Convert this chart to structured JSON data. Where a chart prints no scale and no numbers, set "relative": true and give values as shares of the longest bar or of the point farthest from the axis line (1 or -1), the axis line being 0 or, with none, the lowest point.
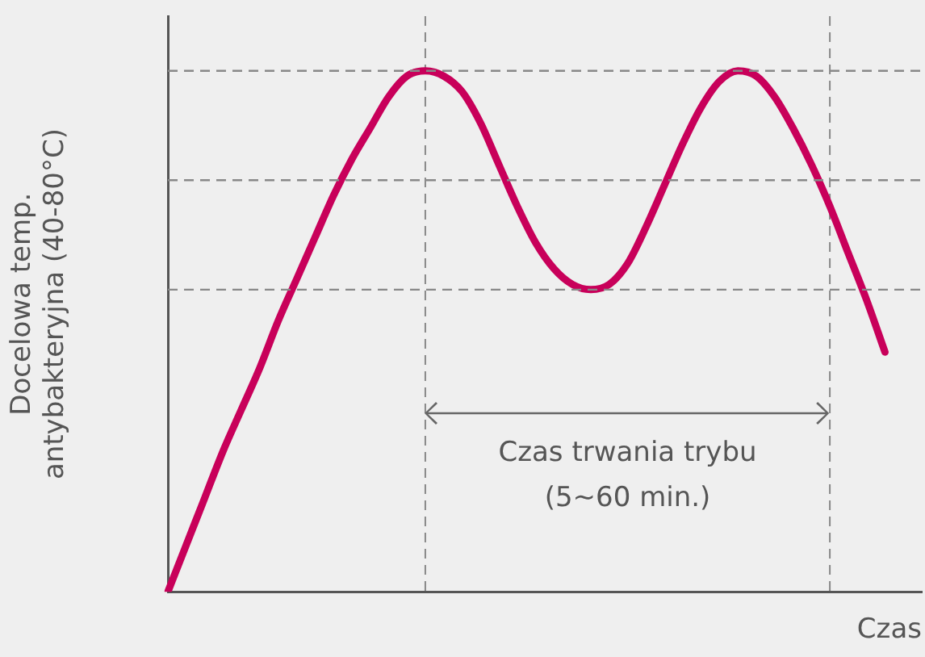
{
  "chart_data": {
    "type": "line",
    "relative": true,
    "xlabel": "Czas",
    "ylabel": "Docelowa temp.\nantybakteryjna (40-80°C)",
    "categories": [
      null,
      null,
      null,
      null,
      null,
      null,
      null,
      null,
      null,
      null,
      null,
      null,
      null,
      null,
      null,
      null,
      null,
      null,
      null,
      null,
      null,
      null,
      null,
      null,
      null,
      null,
      null,
      null,
      null,
      null,
      null,
      null,
      null,
      null,
      null,
      null,
      null,
      null,
      null,
      null,
      null,
      null
    ],
    "series": [
      {
        "color": "#c8005a",
        "values": [
          0,
          0.09,
          0.18,
          0.27,
          0.35,
          0.43,
          0.52,
          0.6,
          0.68,
          0.76,
          0.83,
          0.89,
          0.95,
          0.99,
          1,
          0.99,
          0.96,
          0.9,
          0.82,
          0.74,
          0.67,
          0.62,
          0.59,
          0.58,
          0.59,
          0.63,
          0.7,
          0.78,
          0.86,
          0.93,
          0.98,
          1,
          0.99,
          0.95,
          0.89,
          0.82,
          0.74,
          0.65,
          0.56,
          0.46,
          null,
          null
        ]
      }
    ],
    "ref_lines": [
      {
        "axis": "y",
        "value": 1,
        "color": "#888888",
        "line_style": "dashed"
      },
      {
        "axis": "y",
        "value": 0.79,
        "color": "#888888",
        "line_style": "dashed"
      },
      {
        "axis": "y",
        "value": 0.58,
        "color": "#888888",
        "line_style": "dashed"
      }
    ],
    "annotations": [
      "Czas trwania trybu",
      "(5~60 min.)"
    ],
    "legend": false,
    "marker": "none",
    "line_style": "solid",
    "grid": false
  }
}
